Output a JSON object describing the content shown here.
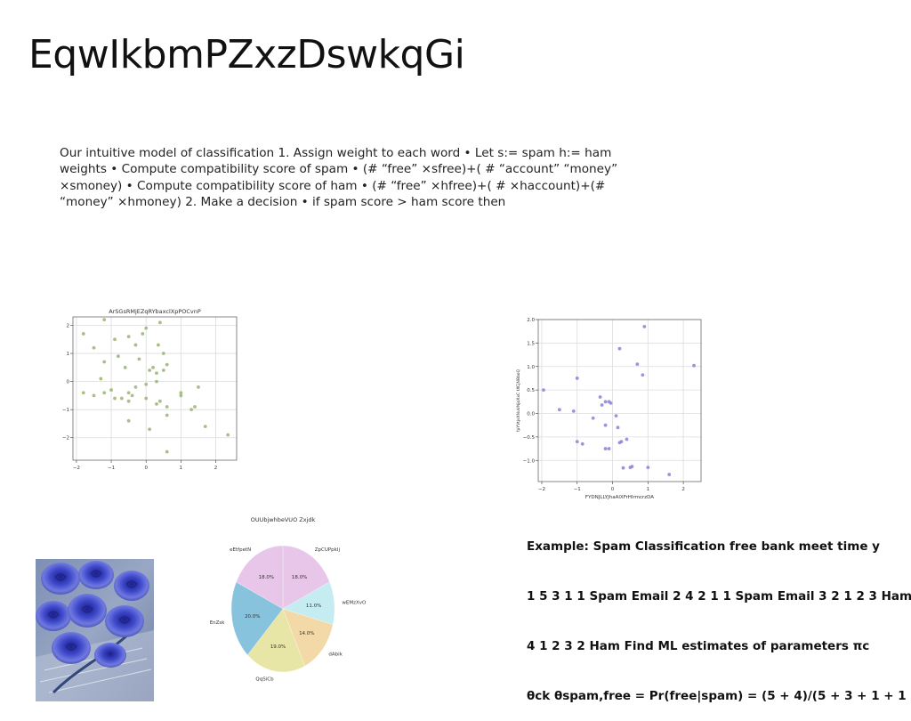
{
  "slide": {
    "title": "EqwIkbmPZxzDswkqGi",
    "body": "Our intuitive model of classification 1. Assign weight to each word • Let s:= spam h:= ham weights • Compute compatibility score of spam • (# “free” ×sfree)+( # “account” “money” ×smoney) • Compute compatibility score of ham • (# “free” ×hfree)+( # ×haccount)+(# “money” ×hmoney) 2. Make a decision • if spam score > ham score then",
    "example_lines": [
      "Example: Spam Classification free bank meet time y",
      "1 5 3 1 1 Spam Email 2 4 2 1 1 Spam Email 3 2 1 2 3 Ham",
      "4 1 2 3 2 Ham Find ML estimates of parameters πc",
      "θck θspam,free = Pr(free|spam) = (5 + 4)/(5 + 3 + 1 + 1"
    ]
  },
  "photo": {
    "subject": "blue roses"
  },
  "chart_data": [
    {
      "type": "scatter",
      "title": "ArSGsRMjEZqRYbaxclXpPOCvnP",
      "xlabel": "",
      "ylabel": "",
      "xlim": [
        -2.1,
        2.6
      ],
      "ylim": [
        -2.8,
        2.3
      ],
      "xticks": [
        -2,
        -1,
        0,
        1,
        2
      ],
      "yticks": [
        -2,
        -1,
        0,
        1,
        2
      ],
      "tick_labels_x": [
        "−2",
        "−1",
        "0",
        "1",
        "2"
      ],
      "tick_labels_y": [
        "−2",
        "−1",
        "0",
        "1",
        "2"
      ],
      "grid": true,
      "color": "#9fb87a",
      "points": [
        [
          -1.2,
          2.2
        ],
        [
          -1.8,
          1.7
        ],
        [
          -1.5,
          1.2
        ],
        [
          -0.9,
          1.5
        ],
        [
          -0.5,
          1.6
        ],
        [
          -0.3,
          1.3
        ],
        [
          0.0,
          1.9
        ],
        [
          -0.1,
          1.7
        ],
        [
          0.4,
          2.1
        ],
        [
          0.35,
          1.3
        ],
        [
          0.5,
          1.0
        ],
        [
          -1.2,
          0.7
        ],
        [
          -0.8,
          0.9
        ],
        [
          -0.6,
          0.5
        ],
        [
          -0.2,
          0.8
        ],
        [
          0.1,
          0.4
        ],
        [
          0.2,
          0.5
        ],
        [
          0.3,
          0.3
        ],
        [
          0.5,
          0.4
        ],
        [
          0.6,
          0.6
        ],
        [
          -1.3,
          0.1
        ],
        [
          -1.0,
          -0.3
        ],
        [
          -0.5,
          -0.4
        ],
        [
          -0.3,
          -0.2
        ],
        [
          0.0,
          -0.1
        ],
        [
          0.3,
          0.0
        ],
        [
          -1.8,
          -0.4
        ],
        [
          -1.5,
          -0.5
        ],
        [
          -1.2,
          -0.4
        ],
        [
          -0.9,
          -0.6
        ],
        [
          -0.7,
          -0.6
        ],
        [
          -0.5,
          -0.7
        ],
        [
          -0.4,
          -0.5
        ],
        [
          0.3,
          -0.8
        ],
        [
          0.4,
          -0.7
        ],
        [
          0.6,
          -0.9
        ],
        [
          1.0,
          -0.4
        ],
        [
          1.0,
          -0.5
        ],
        [
          1.5,
          -0.2
        ],
        [
          1.4,
          -0.9
        ],
        [
          1.3,
          -1.0
        ],
        [
          0.6,
          -1.2
        ],
        [
          0.1,
          -1.7
        ],
        [
          -0.5,
          -1.4
        ],
        [
          1.7,
          -1.6
        ],
        [
          2.35,
          -1.9
        ],
        [
          0.6,
          -2.5
        ],
        [
          0.0,
          -0.6
        ]
      ]
    },
    {
      "type": "scatter",
      "title": "",
      "xlabel": "FYDNJLLYJhaAlXFrHIrmcrzDA",
      "ylabel": "fpYVtjsXNuVNjoXxC tXCjNBboQ",
      "xlim": [
        -2.1,
        2.5
      ],
      "ylim": [
        -1.45,
        2.0
      ],
      "xticks": [
        -2,
        -1,
        0,
        1,
        2
      ],
      "yticks": [
        -1.0,
        -0.5,
        0.0,
        0.5,
        1.0,
        1.5,
        2.0
      ],
      "tick_labels_x": [
        "−2",
        "−1",
        "0",
        "1",
        "2"
      ],
      "tick_labels_y": [
        "−1.0",
        "−0.5",
        "0.0",
        "0.5",
        "1.0",
        "1.5",
        "2.0"
      ],
      "grid": true,
      "color": "#8e88de",
      "points": [
        [
          0.9,
          1.85
        ],
        [
          0.2,
          1.38
        ],
        [
          0.7,
          1.05
        ],
        [
          2.3,
          1.02
        ],
        [
          0.85,
          0.82
        ],
        [
          -1.0,
          0.75
        ],
        [
          -1.95,
          0.5
        ],
        [
          -0.35,
          0.35
        ],
        [
          -0.1,
          0.25
        ],
        [
          -0.05,
          0.22
        ],
        [
          -0.2,
          0.25
        ],
        [
          -0.3,
          0.18
        ],
        [
          -1.5,
          0.08
        ],
        [
          -1.1,
          0.05
        ],
        [
          0.1,
          -0.05
        ],
        [
          -0.55,
          -0.1
        ],
        [
          -0.2,
          -0.25
        ],
        [
          0.15,
          -0.3
        ],
        [
          -1.0,
          -0.6
        ],
        [
          -0.85,
          -0.65
        ],
        [
          0.4,
          -0.55
        ],
        [
          0.25,
          -0.6
        ],
        [
          0.2,
          -0.62
        ],
        [
          -0.1,
          -0.75
        ],
        [
          -0.2,
          -0.75
        ],
        [
          1.0,
          -1.15
        ],
        [
          0.55,
          -1.13
        ],
        [
          0.5,
          -1.15
        ],
        [
          0.3,
          -1.16
        ],
        [
          1.6,
          -1.3
        ]
      ]
    },
    {
      "type": "pie",
      "title": "OUUbjwhbeVUO Zxjdk",
      "slices": [
        {
          "label": "ZpCUPpkIj",
          "value": 18.0,
          "display": "18.0%",
          "color": "#e7c6ea"
        },
        {
          "label": "wEMzXvO",
          "value": 11.0,
          "display": "11.0%",
          "color": "#c4ecf1"
        },
        {
          "label": "dAbik",
          "value": 14.0,
          "display": "14.0%",
          "color": "#f3d8a8"
        },
        {
          "label": "QqSiCb",
          "value": 19.0,
          "display": "19.0%",
          "color": "#e8e6a6"
        },
        {
          "label": "EnZsk",
          "value": 20.0,
          "display": "20.0%",
          "color": "#88c3dd"
        },
        {
          "label": "eEtfpetN",
          "value": 18.0,
          "display": "18.0%",
          "color": "#e7c6ea"
        }
      ]
    }
  ]
}
